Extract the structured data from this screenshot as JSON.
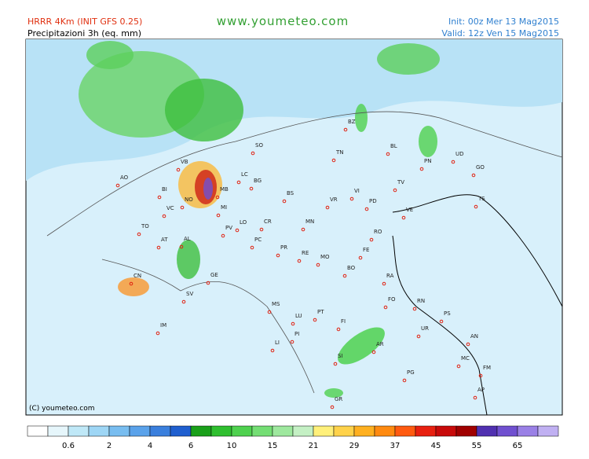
{
  "header": {
    "model": "HRRR 4Km (INIT GFS 0.25)",
    "field": "Precipitazioni 3h (eq. mm)",
    "site": "www.youmeteo.com",
    "init": "Init: 00z Mer  13 Mag2015",
    "valid": "Valid: 12z Ven  15 Mag2015"
  },
  "map": {
    "copyright": "(C) youmeteo.com",
    "cities": [
      "VB",
      "SO",
      "BZ",
      "BL",
      "PN",
      "UD",
      "GO",
      "TN",
      "AO",
      "BI",
      "LC",
      "BG",
      "MB",
      "NO",
      "VC",
      "MI",
      "BS",
      "VR",
      "VI",
      "TV",
      "PD",
      "VE",
      "TS",
      "TO",
      "AT",
      "AL",
      "PV",
      "LO",
      "CR",
      "MN",
      "RO",
      "PC",
      "PR",
      "RE",
      "MO",
      "FE",
      "BO",
      "RA",
      "CN",
      "GE",
      "SV",
      "FO",
      "RN",
      "IM",
      "MS",
      "LU",
      "PT",
      "FI",
      "PS",
      "UR",
      "AN",
      "PI",
      "LI",
      "AR",
      "SI",
      "MC",
      "FM",
      "PG",
      "GR",
      "AP"
    ]
  },
  "scale": {
    "labels": [
      "0.6",
      "2",
      "4",
      "6",
      "10",
      "15",
      "21",
      "29",
      "37",
      "45",
      "55",
      "65"
    ],
    "colors": [
      "#ffffff",
      "#e6f6fb",
      "#bfe8f7",
      "#9ed6f5",
      "#78bdf0",
      "#5aa2ea",
      "#3a7fdd",
      "#1f5fcf",
      "#1aa01a",
      "#2fbf2f",
      "#4fd14f",
      "#74de74",
      "#9ee89e",
      "#c4f0c4",
      "#fff07a",
      "#ffd24a",
      "#ffb020",
      "#ff8a10",
      "#ff5a10",
      "#e82010",
      "#c80a0a",
      "#a00000",
      "#5030b0",
      "#7050d0",
      "#9a80e6",
      "#c0b0f2"
    ]
  }
}
